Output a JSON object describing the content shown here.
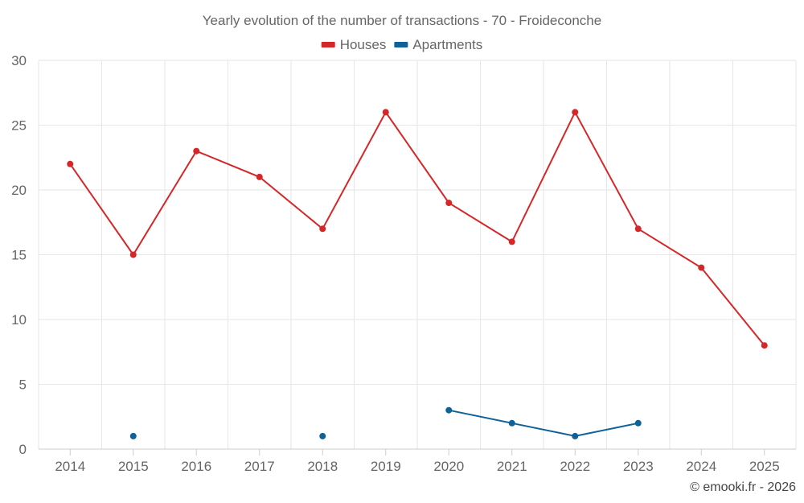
{
  "chart_data": {
    "type": "line",
    "title": "Yearly evolution of the number of transactions - 70 - Froideconche",
    "categories": [
      "2014",
      "2015",
      "2016",
      "2017",
      "2018",
      "2019",
      "2020",
      "2021",
      "2022",
      "2023",
      "2024",
      "2025"
    ],
    "ylim": [
      0,
      30
    ],
    "yticks": [
      0,
      5,
      10,
      15,
      20,
      25,
      30
    ],
    "grid": true,
    "legend_position": "top-center",
    "series": [
      {
        "name": "Houses",
        "color": "#d62728",
        "values": [
          22,
          15,
          23,
          21,
          17,
          26,
          19,
          16,
          26,
          17,
          14,
          8
        ]
      },
      {
        "name": "Apartments",
        "color": "#0e6298",
        "values": [
          null,
          1,
          null,
          null,
          1,
          null,
          3,
          2,
          1,
          2,
          null,
          null
        ]
      }
    ]
  },
  "credit": "© emooki.fr - 2026"
}
